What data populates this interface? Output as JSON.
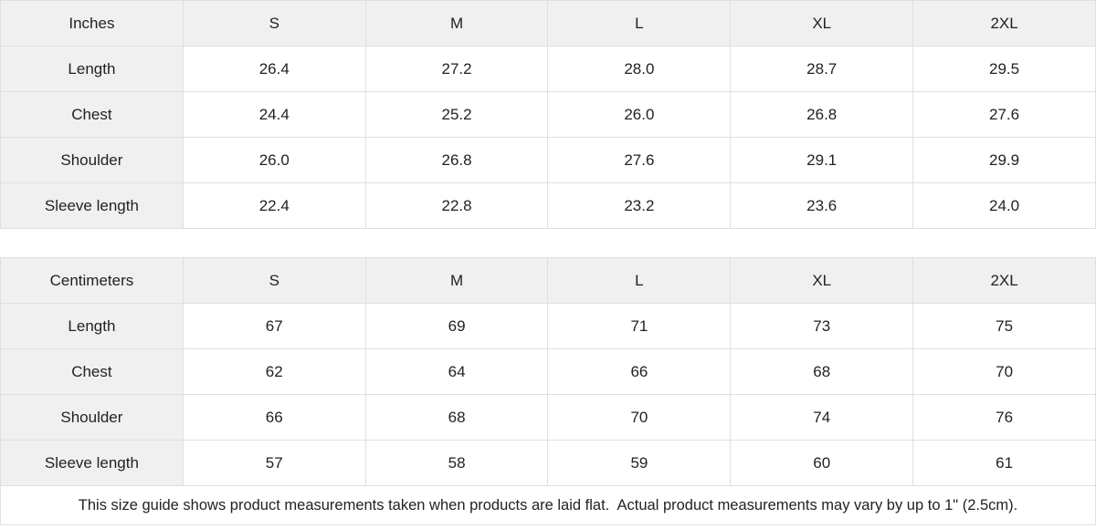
{
  "tables": [
    {
      "unit_label": "Inches",
      "sizes": [
        "S",
        "M",
        "L",
        "XL",
        "2XL"
      ],
      "rows": [
        {
          "label": "Length",
          "values": [
            "26.4",
            "27.2",
            "28.0",
            "28.7",
            "29.5"
          ]
        },
        {
          "label": "Chest",
          "values": [
            "24.4",
            "25.2",
            "26.0",
            "26.8",
            "27.6"
          ]
        },
        {
          "label": "Shoulder",
          "values": [
            "26.0",
            "26.8",
            "27.6",
            "29.1",
            "29.9"
          ]
        },
        {
          "label": "Sleeve length",
          "values": [
            "22.4",
            "22.8",
            "23.2",
            "23.6",
            "24.0"
          ]
        }
      ]
    },
    {
      "unit_label": "Centimeters",
      "sizes": [
        "S",
        "M",
        "L",
        "XL",
        "2XL"
      ],
      "rows": [
        {
          "label": "Length",
          "values": [
            "67",
            "69",
            "71",
            "73",
            "75"
          ]
        },
        {
          "label": "Chest",
          "values": [
            "62",
            "64",
            "66",
            "68",
            "70"
          ]
        },
        {
          "label": "Shoulder",
          "values": [
            "66",
            "68",
            "70",
            "74",
            "76"
          ]
        },
        {
          "label": "Sleeve length",
          "values": [
            "57",
            "58",
            "59",
            "60",
            "61"
          ]
        }
      ]
    }
  ],
  "footer": {
    "note": "This size guide shows product measurements taken when products are laid flat.  Actual product measurements may vary by up to 1\" (2.5cm)."
  },
  "colors": {
    "header_bg": "#f0f0f0",
    "cell_bg": "#ffffff",
    "border": "#dfdfdf",
    "text": "#222222"
  }
}
